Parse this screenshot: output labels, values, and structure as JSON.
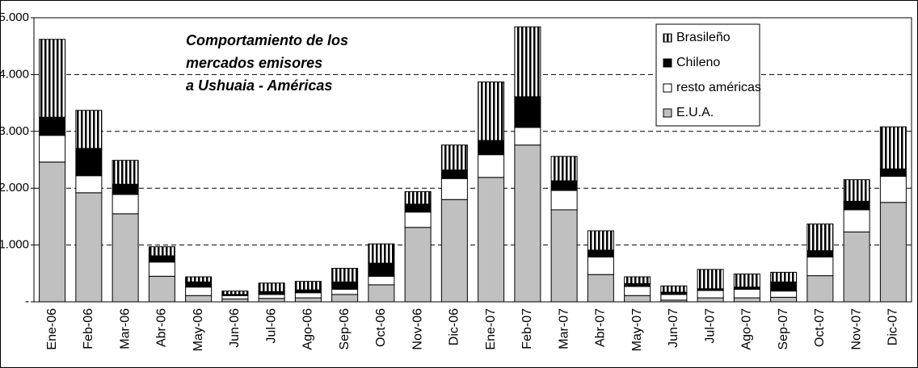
{
  "chart_data": {
    "type": "stacked_bar",
    "title": [
      "Comportamiento de los",
      "mercados emisores",
      "a Ushuaia - Américas"
    ],
    "categories": [
      "Ene-06",
      "Feb-06",
      "Mar-06",
      "Abr-06",
      "May-06",
      "Jun-06",
      "Jul-06",
      "Ago-06",
      "Sep-06",
      "Oct-06",
      "Nov-06",
      "Dic-06",
      "Ene-07",
      "Feb-07",
      "Mar-07",
      "Abr-07",
      "May-07",
      "Jun-07",
      "Jul-07",
      "Ago-07",
      "Sep-07",
      "Oct-07",
      "Nov-07",
      "Dic-07"
    ],
    "series": [
      {
        "name": "E.U.A.",
        "color": "#c0c0c0",
        "values": [
          2460,
          1920,
          1550,
          450,
          110,
          50,
          60,
          70,
          130,
          300,
          1310,
          1800,
          2190,
          2760,
          1620,
          480,
          110,
          30,
          70,
          70,
          80,
          460,
          1230,
          1750
        ]
      },
      {
        "name": "resto américas",
        "color": "#ffffff",
        "values": [
          470,
          300,
          340,
          250,
          150,
          60,
          70,
          90,
          90,
          150,
          270,
          370,
          400,
          310,
          340,
          310,
          160,
          100,
          130,
          150,
          110,
          330,
          390,
          460
        ]
      },
      {
        "name": "Chileno",
        "color": "#000000",
        "values": [
          320,
          480,
          180,
          110,
          90,
          20,
          50,
          50,
          130,
          230,
          140,
          150,
          250,
          540,
          170,
          120,
          50,
          40,
          30,
          40,
          160,
          110,
          150,
          130
        ]
      },
      {
        "name": "Brasileño",
        "color": "#000000",
        "pattern": "vertical-stripes",
        "values": [
          1370,
          670,
          420,
          160,
          90,
          60,
          150,
          150,
          240,
          340,
          220,
          440,
          1030,
          1230,
          430,
          340,
          120,
          110,
          340,
          230,
          170,
          470,
          380,
          740
        ]
      }
    ],
    "ylim": [
      0,
      5000
    ],
    "yticks": [
      {
        "value": 0,
        "label": "-"
      },
      {
        "value": 1000,
        "label": "1.000"
      },
      {
        "value": 2000,
        "label": "2.000"
      },
      {
        "value": 3000,
        "label": "3.000"
      },
      {
        "value": 4000,
        "label": "4.000"
      },
      {
        "value": 5000,
        "label": "5.000"
      }
    ],
    "grid": true,
    "legend": "top-right"
  }
}
